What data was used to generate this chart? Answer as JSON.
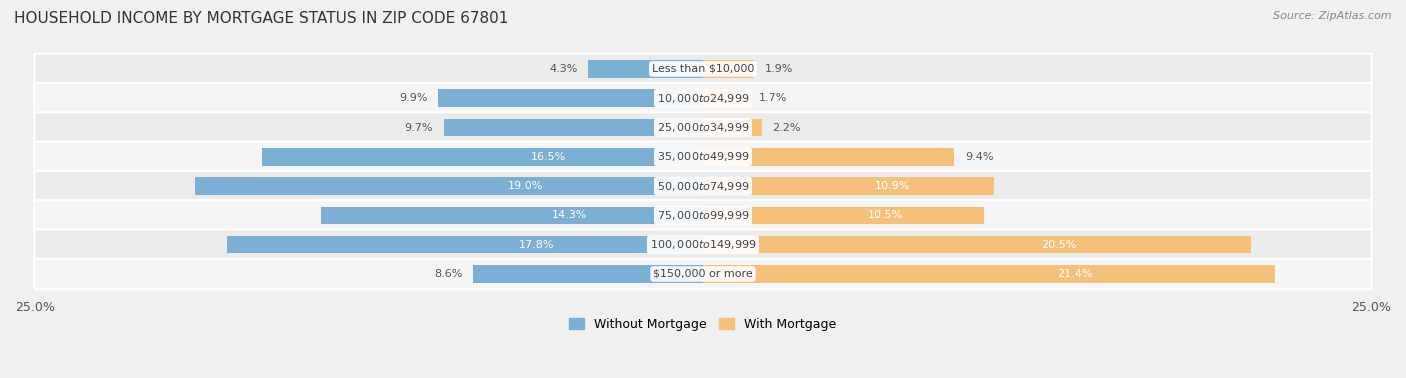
{
  "title": "HOUSEHOLD INCOME BY MORTGAGE STATUS IN ZIP CODE 67801",
  "source": "Source: ZipAtlas.com",
  "categories": [
    "Less than $10,000",
    "$10,000 to $24,999",
    "$25,000 to $34,999",
    "$35,000 to $49,999",
    "$50,000 to $74,999",
    "$75,000 to $99,999",
    "$100,000 to $149,999",
    "$150,000 or more"
  ],
  "without_mortgage": [
    4.3,
    9.9,
    9.7,
    16.5,
    19.0,
    14.3,
    17.8,
    8.6
  ],
  "with_mortgage": [
    1.9,
    1.7,
    2.2,
    9.4,
    10.9,
    10.5,
    20.5,
    21.4
  ],
  "color_without": "#7BAFD4",
  "color_with": "#F5C07A",
  "xlim": 25.0,
  "title_fontsize": 11,
  "label_fontsize": 8,
  "value_fontsize": 8,
  "bar_height": 0.6,
  "legend_fontsize": 9,
  "row_bg_even": "#ebebeb",
  "row_bg_odd": "#f5f5f5",
  "fig_bg": "#f0f0f0"
}
